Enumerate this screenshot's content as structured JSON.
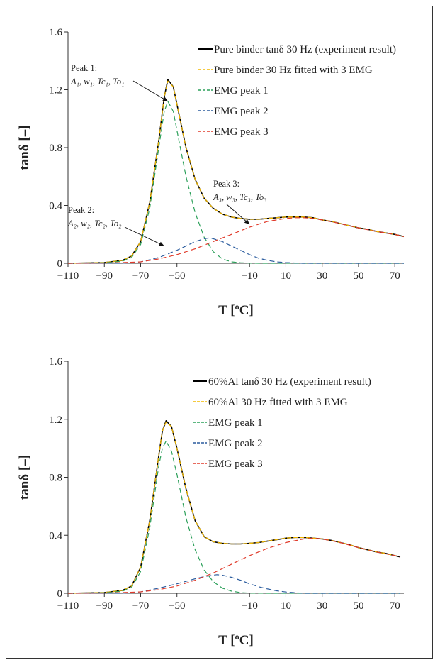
{
  "chart_data": [
    {
      "type": "line",
      "xlabel": "T [ºC]",
      "ylabel": "tanδ [–]",
      "xlim": [
        -110,
        75
      ],
      "ylim": [
        0,
        1.6
      ],
      "xticks": [
        -110,
        -90,
        -70,
        -50,
        -10,
        10,
        30,
        50,
        70
      ],
      "yticks": [
        0,
        0.4,
        0.8,
        1.2,
        1.6
      ],
      "ytick_labels": [
        "0",
        "0.4",
        "0.8",
        "1.2",
        "1.6"
      ],
      "grid": false,
      "legend_position": "top-right",
      "legend": [
        {
          "label": "Pure binder tanδ 30 Hz (experiment result)",
          "color": "#000000",
          "style": "solid"
        },
        {
          "label": "Pure binder 30 Hz fitted with 3 EMG",
          "color": "#f2b800",
          "style": "dashed"
        },
        {
          "label": "EMG peak 1",
          "color": "#2ca05a",
          "style": "dashed"
        },
        {
          "label": "EMG peak 2",
          "color": "#2b5c9e",
          "style": "dashed"
        },
        {
          "label": "EMG peak 3",
          "color": "#e03a2a",
          "style": "dashed"
        }
      ],
      "annotations": [
        {
          "line1": "Peak 1:",
          "line2": "A₁, w₁, Tc₁, To₁",
          "point_x": -55,
          "point_y": 1.12
        },
        {
          "line1": "Peak 2:",
          "line2": "A₂, w₂, Tc₂, To₂",
          "point_x": -57,
          "point_y": 0.12
        },
        {
          "line1": "Peak 3:",
          "line2": "A₃, w₃, Tc₃, To₃",
          "point_x": -10,
          "point_y": 0.27
        }
      ],
      "series": [
        {
          "key": "experiment",
          "color": "#000000",
          "width": 1.6,
          "dash": "",
          "x": [
            -110,
            -90,
            -80,
            -75,
            -70,
            -65,
            -60,
            -57,
            -55,
            -52,
            -50,
            -45,
            -40,
            -35,
            -30,
            -25,
            -20,
            -15,
            -10,
            -5,
            0,
            5,
            10,
            15,
            20,
            25,
            30,
            35,
            40,
            45,
            50,
            55,
            60,
            65,
            70,
            75
          ],
          "y": [
            0,
            0.005,
            0.02,
            0.05,
            0.15,
            0.42,
            0.85,
            1.15,
            1.27,
            1.22,
            1.1,
            0.8,
            0.58,
            0.45,
            0.38,
            0.34,
            0.32,
            0.31,
            0.305,
            0.305,
            0.31,
            0.315,
            0.32,
            0.32,
            0.32,
            0.315,
            0.3,
            0.29,
            0.275,
            0.26,
            0.245,
            0.235,
            0.22,
            0.21,
            0.2,
            0.185
          ]
        },
        {
          "key": "fitted",
          "color": "#f2b800",
          "width": 1.3,
          "dash": "6,3",
          "x": [
            -110,
            -90,
            -80,
            -75,
            -70,
            -65,
            -60,
            -57,
            -55,
            -52,
            -50,
            -45,
            -40,
            -35,
            -30,
            -25,
            -20,
            -15,
            -10,
            -5,
            0,
            5,
            10,
            15,
            20,
            25,
            30,
            35,
            40,
            45,
            50,
            55,
            60,
            65,
            70,
            75
          ],
          "y": [
            0,
            0.005,
            0.02,
            0.05,
            0.15,
            0.42,
            0.85,
            1.15,
            1.26,
            1.22,
            1.1,
            0.8,
            0.58,
            0.45,
            0.38,
            0.34,
            0.32,
            0.31,
            0.305,
            0.305,
            0.31,
            0.315,
            0.32,
            0.32,
            0.32,
            0.315,
            0.3,
            0.29,
            0.275,
            0.26,
            0.245,
            0.235,
            0.22,
            0.21,
            0.2,
            0.185
          ]
        },
        {
          "key": "peak1",
          "color": "#2ca05a",
          "width": 1.2,
          "dash": "7,4",
          "x": [
            -110,
            -90,
            -80,
            -75,
            -70,
            -65,
            -60,
            -57,
            -55,
            -52,
            -50,
            -45,
            -40,
            -35,
            -30,
            -25,
            -20,
            -15,
            -10,
            -5,
            0,
            75
          ],
          "y": [
            0,
            0.003,
            0.015,
            0.04,
            0.13,
            0.38,
            0.8,
            1.05,
            1.12,
            1.05,
            0.92,
            0.6,
            0.35,
            0.18,
            0.08,
            0.03,
            0.01,
            0.004,
            0.001,
            0,
            0,
            0
          ]
        },
        {
          "key": "peak2",
          "color": "#2b5c9e",
          "width": 1.2,
          "dash": "7,4",
          "x": [
            -110,
            -80,
            -70,
            -60,
            -50,
            -45,
            -40,
            -35,
            -32,
            -30,
            -25,
            -20,
            -15,
            -10,
            -5,
            0,
            5,
            10,
            15,
            20,
            75
          ],
          "y": [
            0,
            0,
            0.01,
            0.04,
            0.09,
            0.12,
            0.15,
            0.17,
            0.175,
            0.17,
            0.15,
            0.12,
            0.09,
            0.06,
            0.035,
            0.02,
            0.01,
            0.005,
            0.002,
            0,
            0
          ]
        },
        {
          "key": "peak3",
          "color": "#e03a2a",
          "width": 1.2,
          "dash": "7,4",
          "x": [
            -110,
            -90,
            -80,
            -70,
            -60,
            -50,
            -40,
            -30,
            -20,
            -10,
            0,
            10,
            15,
            20,
            25,
            30,
            40,
            50,
            60,
            70,
            75
          ],
          "y": [
            0,
            0.002,
            0.005,
            0.01,
            0.03,
            0.06,
            0.1,
            0.15,
            0.2,
            0.25,
            0.29,
            0.31,
            0.315,
            0.315,
            0.31,
            0.3,
            0.275,
            0.245,
            0.22,
            0.2,
            0.185
          ]
        }
      ]
    },
    {
      "type": "line",
      "xlabel": "T [ºC]",
      "ylabel": "tanδ [–]",
      "xlim": [
        -110,
        75
      ],
      "ylim": [
        0,
        1.6
      ],
      "xticks": [
        -110,
        -90,
        -70,
        -50,
        -10,
        10,
        30,
        50,
        70
      ],
      "yticks": [
        0,
        0.4,
        0.8,
        1.2,
        1.6
      ],
      "ytick_labels": [
        "0",
        "0.4",
        "0.8",
        "1.2",
        "1.6"
      ],
      "grid": false,
      "legend_position": "top-right",
      "legend": [
        {
          "label": "60%Al tanδ 30 Hz (experiment result)",
          "color": "#000000",
          "style": "solid"
        },
        {
          "label": "60%Al 30 Hz fitted with 3 EMG",
          "color": "#f2b800",
          "style": "dashed"
        },
        {
          "label": "EMG peak 1",
          "color": "#2ca05a",
          "style": "dashed"
        },
        {
          "label": "EMG peak 2",
          "color": "#2b5c9e",
          "style": "dashed"
        },
        {
          "label": "EMG peak 3",
          "color": "#e03a2a",
          "style": "dashed"
        }
      ],
      "annotations": [],
      "series": [
        {
          "key": "experiment",
          "color": "#000000",
          "width": 1.6,
          "dash": "",
          "x": [
            -110,
            -90,
            -80,
            -75,
            -70,
            -65,
            -60,
            -58,
            -56,
            -53,
            -50,
            -45,
            -40,
            -35,
            -30,
            -25,
            -20,
            -15,
            -10,
            -5,
            0,
            5,
            10,
            15,
            20,
            25,
            30,
            35,
            40,
            45,
            50,
            55,
            60,
            65,
            70,
            73
          ],
          "y": [
            0,
            0.005,
            0.02,
            0.05,
            0.18,
            0.5,
            0.95,
            1.12,
            1.19,
            1.15,
            1.0,
            0.72,
            0.5,
            0.39,
            0.355,
            0.345,
            0.34,
            0.34,
            0.345,
            0.35,
            0.36,
            0.37,
            0.38,
            0.385,
            0.385,
            0.38,
            0.375,
            0.365,
            0.35,
            0.335,
            0.315,
            0.3,
            0.285,
            0.275,
            0.26,
            0.25
          ]
        },
        {
          "key": "fitted",
          "color": "#f2b800",
          "width": 1.3,
          "dash": "6,3",
          "x": [
            -110,
            -90,
            -80,
            -75,
            -70,
            -65,
            -60,
            -58,
            -56,
            -53,
            -50,
            -45,
            -40,
            -35,
            -30,
            -25,
            -20,
            -15,
            -10,
            -5,
            0,
            5,
            10,
            15,
            20,
            25,
            30,
            35,
            40,
            45,
            50,
            55,
            60,
            65,
            70,
            73
          ],
          "y": [
            0,
            0.005,
            0.02,
            0.05,
            0.18,
            0.5,
            0.95,
            1.12,
            1.18,
            1.15,
            1.0,
            0.72,
            0.5,
            0.39,
            0.355,
            0.345,
            0.34,
            0.34,
            0.345,
            0.35,
            0.36,
            0.37,
            0.38,
            0.385,
            0.385,
            0.38,
            0.375,
            0.365,
            0.35,
            0.335,
            0.315,
            0.3,
            0.285,
            0.275,
            0.26,
            0.25
          ]
        },
        {
          "key": "peak1",
          "color": "#2ca05a",
          "width": 1.2,
          "dash": "7,4",
          "x": [
            -110,
            -90,
            -80,
            -75,
            -70,
            -65,
            -60,
            -58,
            -56,
            -53,
            -50,
            -45,
            -40,
            -35,
            -30,
            -25,
            -20,
            -15,
            -10,
            0,
            73
          ],
          "y": [
            0,
            0.003,
            0.015,
            0.04,
            0.15,
            0.45,
            0.88,
            1.0,
            1.05,
            0.98,
            0.82,
            0.52,
            0.3,
            0.16,
            0.08,
            0.035,
            0.015,
            0.005,
            0.001,
            0,
            0
          ]
        },
        {
          "key": "peak2",
          "color": "#2b5c9e",
          "width": 1.2,
          "dash": "7,4",
          "x": [
            -110,
            -80,
            -70,
            -60,
            -50,
            -40,
            -35,
            -30,
            -28,
            -25,
            -20,
            -15,
            -10,
            -5,
            0,
            5,
            10,
            15,
            20,
            73
          ],
          "y": [
            0,
            0,
            0.01,
            0.035,
            0.065,
            0.1,
            0.115,
            0.125,
            0.128,
            0.125,
            0.11,
            0.09,
            0.065,
            0.045,
            0.03,
            0.017,
            0.009,
            0.004,
            0,
            0
          ]
        },
        {
          "key": "peak3",
          "color": "#e03a2a",
          "width": 1.2,
          "dash": "7,4",
          "x": [
            -110,
            -90,
            -80,
            -70,
            -60,
            -50,
            -40,
            -30,
            -20,
            -10,
            0,
            10,
            20,
            25,
            30,
            40,
            50,
            60,
            70,
            73
          ],
          "y": [
            0,
            0.002,
            0.005,
            0.01,
            0.025,
            0.05,
            0.09,
            0.14,
            0.2,
            0.26,
            0.31,
            0.35,
            0.375,
            0.38,
            0.375,
            0.35,
            0.315,
            0.285,
            0.26,
            0.25
          ]
        }
      ]
    }
  ]
}
